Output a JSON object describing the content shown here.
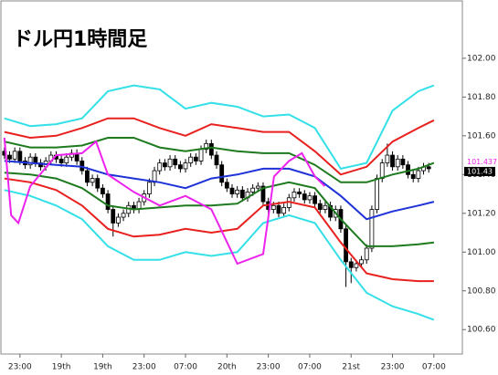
{
  "chart_data": {
    "type": "candlestick",
    "title": "ドル円1時間足",
    "xlim": [
      -0.5,
      88.5
    ],
    "ylim": [
      100.474,
      102.296
    ],
    "yticks": [
      {
        "value": 100.6,
        "label": "100.60"
      },
      {
        "value": 100.8,
        "label": "100.80"
      },
      {
        "value": 101,
        "label": "101.00"
      },
      {
        "value": 101.2,
        "label": "101.20"
      },
      {
        "value": 101.4,
        "label": "101.40"
      },
      {
        "value": 101.6,
        "label": "101.60"
      },
      {
        "value": 101.8,
        "label": "101.80"
      },
      {
        "value": 102,
        "label": "102.00"
      }
    ],
    "xticks": [
      {
        "value": 3,
        "label": "23:00"
      },
      {
        "value": 11,
        "label": "19th"
      },
      {
        "value": 19,
        "label": "19th"
      },
      {
        "value": 27,
        "label": "23:00"
      },
      {
        "value": 35,
        "label": "07:00"
      },
      {
        "value": 43,
        "label": "20th"
      },
      {
        "value": 51,
        "label": "23:00"
      },
      {
        "value": 59,
        "label": "07:00"
      },
      {
        "value": 67,
        "label": "21st"
      },
      {
        "value": 75,
        "label": "23:00"
      },
      {
        "value": 83,
        "label": "07:00"
      }
    ],
    "candles": {
      "up_color": "#ffffff",
      "down_color": "#000000",
      "open": [
        101.52,
        101.5,
        101.48,
        101.52,
        101.47,
        101.45,
        101.49,
        101.46,
        101.44,
        101.47,
        101.5,
        101.48,
        101.46,
        101.49,
        101.51,
        101.47,
        101.42,
        101.36,
        101.38,
        101.33,
        101.3,
        101.22,
        101.15,
        101.18,
        101.2,
        101.24,
        101.22,
        101.26,
        101.3,
        101.36,
        101.42,
        101.46,
        101.44,
        101.48,
        101.45,
        101.43,
        101.46,
        101.49,
        101.47,
        101.53,
        101.56,
        101.5,
        101.45,
        101.36,
        101.33,
        101.3,
        101.32,
        101.28,
        101.31,
        101.33,
        101.34,
        101.26,
        101.22,
        101.24,
        101.2,
        101.23,
        101.28,
        101.31,
        101.3,
        101.27,
        101.29,
        101.25,
        101.22,
        101.24,
        101.18,
        101.22,
        101.12,
        100.95,
        100.92,
        100.94,
        100.96,
        101.02,
        101.22,
        101.38,
        101.46,
        101.5,
        101.44,
        101.48,
        101.45,
        101.4,
        101.38,
        101.42,
        101.44
      ],
      "high": [
        101.54,
        101.52,
        101.54,
        101.54,
        101.49,
        101.51,
        101.51,
        101.48,
        101.49,
        101.52,
        101.52,
        101.5,
        101.51,
        101.53,
        101.53,
        101.49,
        101.44,
        101.4,
        101.4,
        101.35,
        101.32,
        101.24,
        101.2,
        101.22,
        101.26,
        101.26,
        101.28,
        101.32,
        101.38,
        101.44,
        101.48,
        101.48,
        101.5,
        101.5,
        101.47,
        101.48,
        101.51,
        101.51,
        101.55,
        101.58,
        101.58,
        101.52,
        101.47,
        101.38,
        101.35,
        101.34,
        101.34,
        101.33,
        101.35,
        101.36,
        101.36,
        101.28,
        101.26,
        101.26,
        101.25,
        101.3,
        101.33,
        101.33,
        101.32,
        101.31,
        101.31,
        101.27,
        101.26,
        101.26,
        101.24,
        101.24,
        101.14,
        100.97,
        100.96,
        100.98,
        101.04,
        101.24,
        101.4,
        101.48,
        101.56,
        101.52,
        101.5,
        101.5,
        101.47,
        101.42,
        101.44,
        101.46,
        101.46
      ],
      "low": [
        101.48,
        101.46,
        101.46,
        101.45,
        101.43,
        101.43,
        101.44,
        101.42,
        101.42,
        101.45,
        101.46,
        101.44,
        101.44,
        101.47,
        101.45,
        101.4,
        101.34,
        101.34,
        101.31,
        101.28,
        101.2,
        101.08,
        101.13,
        101.16,
        101.18,
        101.2,
        101.2,
        101.24,
        101.28,
        101.34,
        101.4,
        101.42,
        101.42,
        101.43,
        101.41,
        101.41,
        101.44,
        101.45,
        101.45,
        101.51,
        101.48,
        101.43,
        101.34,
        101.31,
        101.28,
        101.28,
        101.26,
        101.26,
        101.29,
        101.31,
        101.24,
        101.2,
        101.2,
        101.18,
        101.18,
        101.21,
        101.26,
        101.28,
        101.25,
        101.25,
        101.23,
        101.2,
        101.2,
        101.16,
        101.16,
        101.1,
        100.82,
        100.84,
        100.9,
        100.92,
        100.94,
        101.0,
        101.2,
        101.36,
        101.44,
        101.42,
        101.42,
        101.43,
        101.38,
        101.36,
        101.36,
        101.4,
        101.41
      ],
      "close": [
        101.5,
        101.48,
        101.52,
        101.47,
        101.45,
        101.49,
        101.46,
        101.44,
        101.47,
        101.5,
        101.48,
        101.46,
        101.49,
        101.51,
        101.47,
        101.42,
        101.36,
        101.38,
        101.33,
        101.3,
        101.22,
        101.15,
        101.18,
        101.2,
        101.24,
        101.22,
        101.26,
        101.3,
        101.36,
        101.42,
        101.46,
        101.44,
        101.48,
        101.45,
        101.43,
        101.46,
        101.49,
        101.47,
        101.53,
        101.56,
        101.5,
        101.45,
        101.36,
        101.33,
        101.3,
        101.32,
        101.28,
        101.31,
        101.33,
        101.34,
        101.26,
        101.22,
        101.24,
        101.2,
        101.23,
        101.28,
        101.31,
        101.3,
        101.27,
        101.29,
        101.25,
        101.22,
        101.24,
        101.18,
        101.22,
        101.12,
        100.95,
        100.92,
        100.94,
        100.96,
        101.02,
        101.22,
        101.38,
        101.46,
        101.5,
        101.44,
        101.48,
        101.45,
        101.4,
        101.38,
        101.42,
        101.44,
        101.43
      ]
    },
    "lines": [
      {
        "color": "#33e0e8",
        "x": [
          0,
          5,
          10,
          15,
          20,
          25,
          30,
          35,
          40,
          45,
          50,
          55,
          60,
          65,
          70,
          75,
          80,
          83
        ],
        "values": [
          101.69,
          101.65,
          101.66,
          101.69,
          101.83,
          101.86,
          101.84,
          101.74,
          101.77,
          101.75,
          101.7,
          101.71,
          101.64,
          101.43,
          101.46,
          101.73,
          101.83,
          101.86
        ]
      },
      {
        "color": "#e8201e",
        "x": [
          0,
          5,
          10,
          15,
          20,
          25,
          30,
          35,
          40,
          45,
          50,
          55,
          60,
          65,
          70,
          75,
          80,
          83
        ],
        "values": [
          101.62,
          101.59,
          101.6,
          101.64,
          101.69,
          101.69,
          101.64,
          101.6,
          101.66,
          101.64,
          101.62,
          101.62,
          101.52,
          101.4,
          101.44,
          101.57,
          101.64,
          101.68
        ]
      },
      {
        "color": "#1e7a1e",
        "x": [
          0,
          5,
          10,
          15,
          20,
          25,
          30,
          35,
          40,
          45,
          50,
          55,
          60,
          65,
          70,
          75,
          80,
          83
        ],
        "values": [
          101.57,
          101.54,
          101.54,
          101.55,
          101.59,
          101.59,
          101.54,
          101.52,
          101.54,
          101.52,
          101.51,
          101.51,
          101.45,
          101.36,
          101.36,
          101.4,
          101.43,
          101.46
        ]
      },
      {
        "color": "#1e32d8",
        "x": [
          0,
          5,
          10,
          15,
          20,
          25,
          30,
          35,
          40,
          45,
          50,
          55,
          60,
          65,
          70,
          75,
          80,
          83
        ],
        "values": [
          101.47,
          101.46,
          101.45,
          101.44,
          101.4,
          101.38,
          101.36,
          101.33,
          101.38,
          101.4,
          101.43,
          101.43,
          101.39,
          101.29,
          101.17,
          101.21,
          101.24,
          101.26
        ]
      },
      {
        "color": "#1e7a1e",
        "x": [
          0,
          5,
          10,
          15,
          20,
          25,
          30,
          35,
          40,
          45,
          50,
          55,
          60,
          65,
          70,
          75,
          80,
          83
        ],
        "values": [
          101.41,
          101.4,
          101.38,
          101.33,
          101.24,
          101.22,
          101.23,
          101.24,
          101.24,
          101.25,
          101.33,
          101.36,
          101.33,
          101.17,
          101.03,
          101.03,
          101.04,
          101.05
        ]
      },
      {
        "color": "#e8201e",
        "x": [
          0,
          5,
          10,
          15,
          20,
          25,
          30,
          35,
          40,
          45,
          50,
          55,
          60,
          65,
          70,
          75,
          80,
          83
        ],
        "values": [
          101.38,
          101.36,
          101.32,
          101.24,
          101.12,
          101.08,
          101.09,
          101.12,
          101.1,
          101.12,
          101.24,
          101.26,
          101.23,
          101.05,
          100.89,
          100.86,
          100.85,
          100.85
        ]
      },
      {
        "color": "#33e0e8",
        "x": [
          0,
          5,
          10,
          15,
          20,
          25,
          30,
          35,
          40,
          45,
          50,
          55,
          60,
          65,
          70,
          75,
          80,
          83
        ],
        "values": [
          101.32,
          101.29,
          101.24,
          101.17,
          101.03,
          100.96,
          100.96,
          101.0,
          100.98,
          101.0,
          101.15,
          101.19,
          101.15,
          100.96,
          100.79,
          100.72,
          100.68,
          100.65
        ]
      },
      {
        "color": "#ee22ee",
        "x": [
          0,
          1.3,
          2.7,
          5,
          10,
          15,
          17.7,
          20,
          25,
          30,
          35,
          40,
          45,
          50,
          52.1,
          55,
          57.5,
          60,
          61.9
        ],
        "values": [
          101.59,
          101.19,
          101.15,
          101.34,
          101.5,
          101.51,
          101.57,
          101.4,
          101.31,
          101.24,
          101.29,
          101.22,
          100.94,
          100.99,
          101.39,
          101.47,
          101.51,
          101.39,
          101.34
        ]
      }
    ],
    "price_markers": [
      {
        "value": 101.437,
        "color": "#ee22ee"
      },
      {
        "value": 101.43,
        "color": "#000000"
      }
    ]
  }
}
